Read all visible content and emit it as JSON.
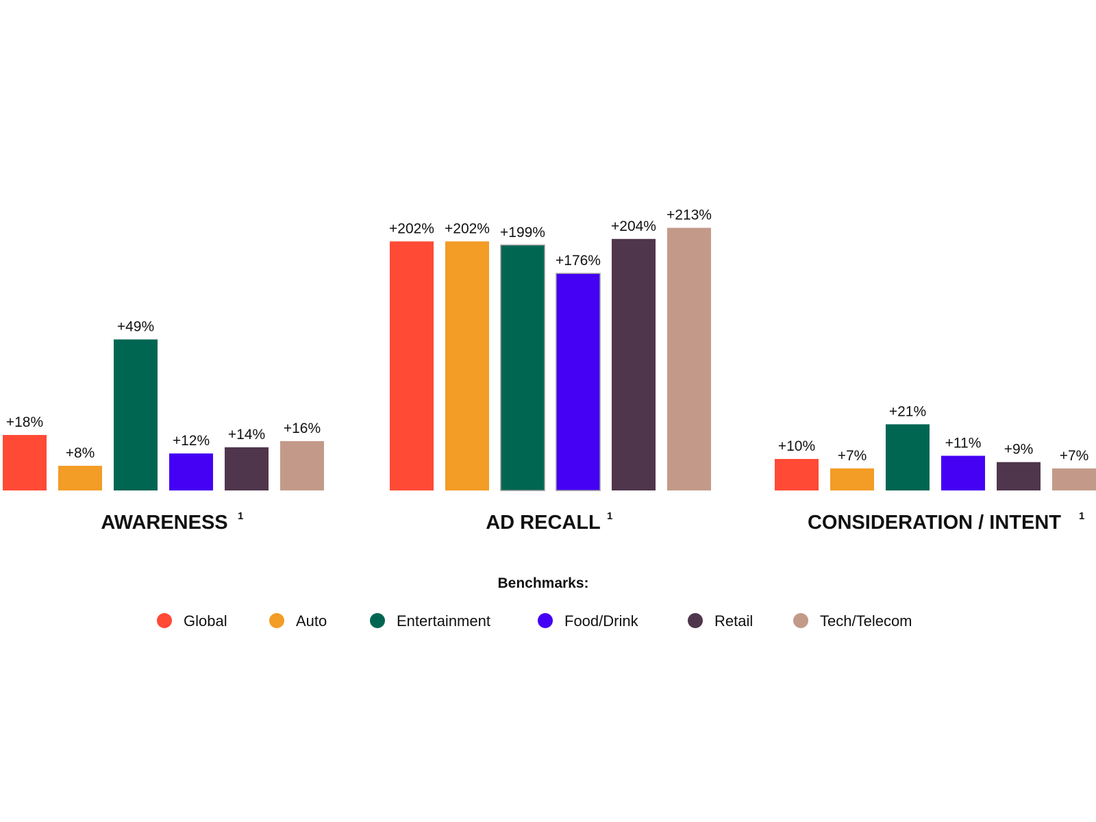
{
  "chart_data": {
    "type": "bar",
    "unit": "%",
    "groups": [
      {
        "title": "AWARENESS",
        "footnote": "1",
        "values": [
          18,
          8,
          49,
          12,
          14,
          16
        ],
        "labels": [
          "+18%",
          "+8%",
          "+49%",
          "+12%",
          "+14%",
          "+16%"
        ]
      },
      {
        "title": "AD RECALL",
        "footnote": "1",
        "values": [
          202,
          202,
          199,
          176,
          204,
          213
        ],
        "labels": [
          "+202%",
          "+202%",
          "+199%",
          "+176%",
          "+204%",
          "+213%"
        ]
      },
      {
        "title": "CONSIDERATION / INTENT",
        "footnote": "1",
        "values": [
          10,
          7,
          21,
          11,
          9,
          7
        ],
        "labels": [
          "+10%",
          "+7%",
          "+21%",
          "+11%",
          "+9%",
          "+7%"
        ]
      }
    ],
    "series": [
      {
        "name": "Global",
        "color": "#FF4A35"
      },
      {
        "name": "Auto",
        "color": "#F39C26"
      },
      {
        "name": "Entertainment",
        "color": "#006652"
      },
      {
        "name": "Food/Drink",
        "color": "#4401F4"
      },
      {
        "name": "Retail",
        "color": "#4F364C"
      },
      {
        "name": "Tech/Telecom",
        "color": "#C39A89"
      }
    ],
    "legend_title": "Benchmarks:",
    "legend_position": "bottom-center"
  }
}
